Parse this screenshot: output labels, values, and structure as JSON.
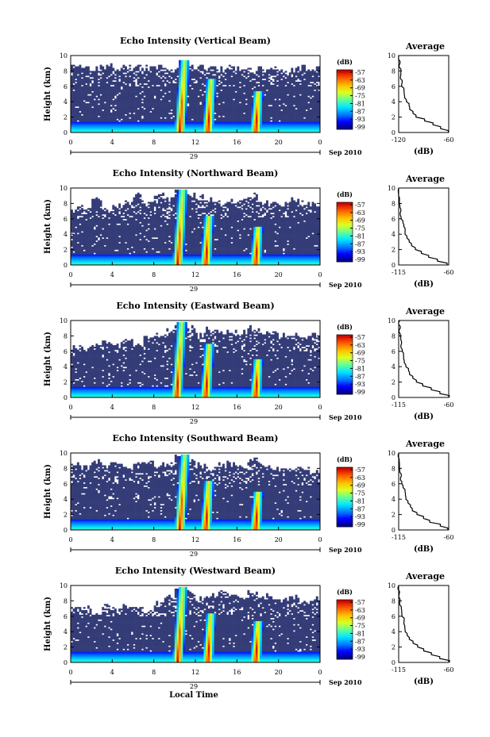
{
  "figure": {
    "xlabel_bottom": "Local Time",
    "colors": {
      "background": "#ffffff",
      "no_echo": "#ffffff",
      "weak_echo": "#343c78"
    }
  },
  "chart_data": [
    {
      "type": "heatmap",
      "title": "Echo Intensity (Vertical Beam)",
      "ylabel": "Height (km)",
      "x_ticks": [
        "0",
        "4",
        "8",
        "12",
        "16",
        "20",
        "0"
      ],
      "xlim": [
        0,
        24
      ],
      "ylim": [
        0,
        10
      ],
      "y_ticks": [
        "0",
        "2",
        "4",
        "6",
        "8",
        "10"
      ],
      "date_day": "29",
      "date_suffix": "Sep 2010",
      "colorbar": {
        "unit": "(dB)",
        "ticks": [
          "-57",
          "-63",
          "-69",
          "-75",
          "-81",
          "-87",
          "-93",
          "-99"
        ]
      },
      "echo_top_km": [
        8.6,
        8.3,
        8.4,
        8.6,
        8.3,
        8.5,
        8.7,
        8.4,
        8.5,
        8.2,
        8.4,
        8.5,
        8.6,
        8.3,
        8.2,
        8.4,
        8.3,
        8.1,
        8.2,
        8.3,
        8.0,
        8.2,
        8.4,
        8.3,
        8.5
      ],
      "convective_cells": [
        {
          "time_h": 10.5,
          "top_km": 9.5
        },
        {
          "time_h": 13.2,
          "top_km": 7.0
        },
        {
          "time_h": 17.8,
          "top_km": 5.5
        }
      ],
      "profile": {
        "title": "Average",
        "xlabel": "(dB)",
        "xlim": [
          -120,
          -60
        ],
        "x_ticks": [
          "-120",
          "-60"
        ],
        "y_ticks": [
          "0",
          "2",
          "4",
          "6",
          "8",
          "10"
        ],
        "height_km": [
          0,
          0.5,
          1,
          1.5,
          2,
          2.5,
          3,
          3.5,
          4,
          4.5,
          5,
          5.5,
          6,
          6.5,
          7,
          7.5,
          8,
          8.5,
          9,
          9.5,
          10
        ],
        "db": [
          -60,
          -70,
          -80,
          -90,
          -100,
          -104,
          -106,
          -108,
          -110,
          -112,
          -113,
          -114,
          -116,
          -117,
          -118,
          -118,
          -118,
          -119,
          -119,
          -119,
          -119
        ]
      }
    },
    {
      "type": "heatmap",
      "title": "Echo Intensity (Northward Beam)",
      "ylabel": "Height (km)",
      "x_ticks": [
        "0",
        "4",
        "8",
        "12",
        "16",
        "20",
        "0"
      ],
      "xlim": [
        0,
        24
      ],
      "ylim": [
        0,
        10
      ],
      "y_ticks": [
        "0",
        "2",
        "4",
        "6",
        "8",
        "10"
      ],
      "date_day": "29",
      "date_suffix": "Sep 2010",
      "colorbar": {
        "unit": "(dB)",
        "ticks": [
          "-57",
          "-63",
          "-69",
          "-75",
          "-81",
          "-87",
          "-93",
          "-99"
        ]
      },
      "echo_top_km": [
        7.2,
        7.5,
        8.8,
        7.0,
        7.6,
        8.2,
        9.0,
        8.0,
        9.3,
        8.5,
        9.8,
        9.0,
        8.8,
        8.4,
        8.0,
        8.3,
        8.6,
        9.0,
        8.2,
        7.8,
        8.1,
        8.5,
        8.0,
        7.9,
        8.2
      ],
      "convective_cells": [
        {
          "time_h": 10.3,
          "top_km": 9.8
        },
        {
          "time_h": 13.0,
          "top_km": 6.5
        },
        {
          "time_h": 17.8,
          "top_km": 5.0
        }
      ],
      "profile": {
        "title": "Average",
        "xlabel": "(dB)",
        "xlim": [
          -115,
          -60
        ],
        "x_ticks": [
          "-115",
          "-60"
        ],
        "y_ticks": [
          "0",
          "2",
          "4",
          "6",
          "8",
          "10"
        ],
        "height_km": [
          0,
          0.5,
          1,
          1.5,
          2,
          2.5,
          3,
          3.5,
          4,
          4.5,
          5,
          5.5,
          6,
          6.5,
          7,
          7.5,
          8,
          8.5,
          9,
          9.5,
          10
        ],
        "db": [
          -62,
          -72,
          -82,
          -90,
          -96,
          -100,
          -103,
          -105,
          -107,
          -109,
          -110,
          -111,
          -112,
          -113,
          -113,
          -114,
          -114,
          -114,
          -115,
          -115,
          -115
        ]
      }
    },
    {
      "type": "heatmap",
      "title": "Echo Intensity (Eastward Beam)",
      "ylabel": "Height (km)",
      "x_ticks": [
        "0",
        "4",
        "8",
        "12",
        "16",
        "20",
        "0"
      ],
      "xlim": [
        0,
        24
      ],
      "ylim": [
        0,
        10
      ],
      "y_ticks": [
        "0",
        "2",
        "4",
        "6",
        "8",
        "10"
      ],
      "date_day": "29",
      "date_suffix": "Sep 2010",
      "colorbar": {
        "unit": "(dB)",
        "ticks": [
          "-57",
          "-63",
          "-69",
          "-75",
          "-81",
          "-87",
          "-93",
          "-99"
        ]
      },
      "echo_top_km": [
        6.6,
        6.2,
        6.8,
        7.2,
        6.9,
        7.5,
        7.0,
        7.8,
        8.1,
        8.6,
        9.5,
        9.0,
        8.2,
        8.8,
        8.5,
        8.7,
        8.4,
        9.0,
        8.6,
        8.3,
        8.0,
        8.2,
        7.9,
        8.1,
        7.8
      ],
      "convective_cells": [
        {
          "time_h": 10.2,
          "top_km": 9.8
        },
        {
          "time_h": 13.0,
          "top_km": 7.0
        },
        {
          "time_h": 17.8,
          "top_km": 5.0
        }
      ],
      "profile": {
        "title": "Average",
        "xlabel": "(dB)",
        "xlim": [
          -115,
          -60
        ],
        "x_ticks": [
          "-115",
          "-60"
        ],
        "y_ticks": [
          "0",
          "2",
          "4",
          "6",
          "8",
          "10"
        ],
        "height_km": [
          0,
          0.5,
          1,
          1.5,
          2,
          2.5,
          3,
          3.5,
          4,
          4.5,
          5,
          5.5,
          6,
          6.5,
          7,
          7.5,
          8,
          8.5,
          9,
          9.5,
          10
        ],
        "db": [
          -60,
          -70,
          -80,
          -88,
          -95,
          -100,
          -103,
          -105,
          -107,
          -108,
          -109,
          -110,
          -111,
          -112,
          -112,
          -113,
          -113,
          -114,
          -114,
          -114,
          -114
        ]
      }
    },
    {
      "type": "heatmap",
      "title": "Echo Intensity (Southward Beam)",
      "ylabel": "Height (km)",
      "x_ticks": [
        "0",
        "4",
        "8",
        "12",
        "16",
        "20",
        "0"
      ],
      "xlim": [
        0,
        24
      ],
      "ylim": [
        0,
        10
      ],
      "y_ticks": [
        "0",
        "2",
        "4",
        "6",
        "8",
        "10"
      ],
      "date_day": "29",
      "date_suffix": "Sep 2010",
      "colorbar": {
        "unit": "(dB)",
        "ticks": [
          "-57",
          "-63",
          "-69",
          "-75",
          "-81",
          "-87",
          "-93",
          "-99"
        ]
      },
      "echo_top_km": [
        8.6,
        8.2,
        8.9,
        8.4,
        8.7,
        8.3,
        8.5,
        8.8,
        8.4,
        8.6,
        9.8,
        9.2,
        8.5,
        8.0,
        8.4,
        8.6,
        8.3,
        9.0,
        8.5,
        8.2,
        7.8,
        8.1,
        8.0,
        7.7,
        8.3
      ],
      "convective_cells": [
        {
          "time_h": 10.5,
          "top_km": 9.8
        },
        {
          "time_h": 13.0,
          "top_km": 6.5
        },
        {
          "time_h": 17.8,
          "top_km": 5.0
        }
      ],
      "profile": {
        "title": "Average",
        "xlabel": "(dB)",
        "xlim": [
          -115,
          -60
        ],
        "x_ticks": [
          "-115",
          "-60"
        ],
        "y_ticks": [
          "0",
          "2",
          "4",
          "6",
          "8",
          "10"
        ],
        "height_km": [
          0,
          0.5,
          1,
          1.5,
          2,
          2.5,
          3,
          3.5,
          4,
          4.5,
          5,
          5.5,
          6,
          6.5,
          7,
          7.5,
          8,
          8.5,
          9,
          9.5,
          10
        ],
        "db": [
          -61,
          -70,
          -80,
          -88,
          -95,
          -100,
          -103,
          -105,
          -107,
          -108,
          -109,
          -110,
          -111,
          -112,
          -113,
          -113,
          -114,
          -114,
          -114,
          -115,
          -115
        ]
      }
    },
    {
      "type": "heatmap",
      "title": "Echo Intensity (Westward Beam)",
      "ylabel": "Height (km)",
      "x_ticks": [
        "0",
        "4",
        "8",
        "12",
        "16",
        "20",
        "0"
      ],
      "xlim": [
        0,
        24
      ],
      "ylim": [
        0,
        10
      ],
      "y_ticks": [
        "0",
        "2",
        "4",
        "6",
        "8",
        "10"
      ],
      "date_day": "29",
      "date_suffix": "Sep 2010",
      "colorbar": {
        "unit": "(dB)",
        "ticks": [
          "-57",
          "-63",
          "-69",
          "-75",
          "-81",
          "-87",
          "-93",
          "-99"
        ]
      },
      "echo_top_km": [
        6.8,
        7.0,
        6.5,
        7.2,
        6.9,
        7.4,
        7.1,
        6.8,
        7.6,
        8.5,
        9.5,
        9.0,
        8.2,
        8.8,
        9.2,
        8.7,
        8.3,
        9.0,
        8.6,
        8.4,
        8.1,
        8.5,
        8.0,
        8.2,
        7.9
      ],
      "convective_cells": [
        {
          "time_h": 10.3,
          "top_km": 9.8
        },
        {
          "time_h": 13.2,
          "top_km": 6.5
        },
        {
          "time_h": 17.8,
          "top_km": 5.5
        }
      ],
      "profile": {
        "title": "Average",
        "xlabel": "(dB)",
        "xlim": [
          -115,
          -60
        ],
        "x_ticks": [
          "-115",
          "-60"
        ],
        "y_ticks": [
          "0",
          "2",
          "4",
          "6",
          "8",
          "10"
        ],
        "height_km": [
          0,
          0.5,
          1,
          1.5,
          2,
          2.5,
          3,
          3.5,
          4,
          4.5,
          5,
          5.5,
          6,
          6.5,
          7,
          7.5,
          8,
          8.5,
          9,
          9.5,
          10
        ],
        "db": [
          -60,
          -69,
          -79,
          -88,
          -95,
          -100,
          -103,
          -105,
          -107,
          -108,
          -109,
          -110,
          -111,
          -112,
          -112,
          -113,
          -113,
          -114,
          -114,
          -115,
          -115
        ]
      }
    }
  ]
}
